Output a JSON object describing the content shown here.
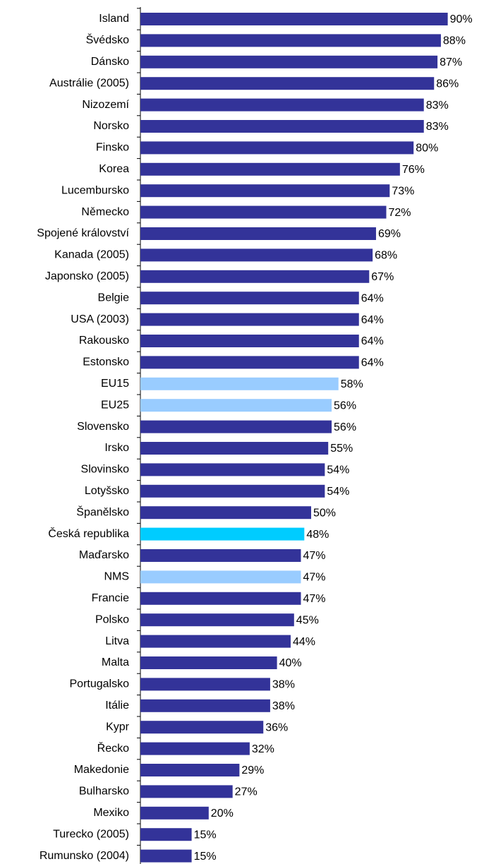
{
  "chart_data": {
    "type": "barh",
    "categories": [
      "Island",
      "Švédsko",
      "Dánsko",
      "Austrálie (2005)",
      "Nizozemí",
      "Norsko",
      "Finsko",
      "Korea",
      "Lucembursko",
      "Německo",
      "Spojené království",
      "Kanada (2005)",
      "Japonsko (2005)",
      "Belgie",
      "USA (2003)",
      "Rakousko",
      "Estonsko",
      "EU15",
      "EU25",
      "Slovensko",
      "Irsko",
      "Slovinsko",
      "Lotyšsko",
      "Španělsko",
      "Česká republika",
      "Maďarsko",
      "NMS",
      "Francie",
      "Polsko",
      "Litva",
      "Malta",
      "Portugalsko",
      "Itálie",
      "Kypr",
      "Řecko",
      "Makedonie",
      "Bulharsko",
      "Mexiko",
      "Turecko (2005)",
      "Rumunsko (2004)"
    ],
    "values": [
      90,
      88,
      87,
      86,
      83,
      83,
      80,
      76,
      73,
      72,
      69,
      68,
      67,
      64,
      64,
      64,
      64,
      58,
      56,
      56,
      55,
      54,
      54,
      50,
      48,
      47,
      47,
      47,
      45,
      44,
      40,
      38,
      38,
      36,
      32,
      29,
      27,
      20,
      15,
      15
    ],
    "value_labels": [
      "90%",
      "88%",
      "87%",
      "86%",
      "83%",
      "83%",
      "80%",
      "76%",
      "73%",
      "72%",
      "69%",
      "68%",
      "67%",
      "64%",
      "64%",
      "64%",
      "64%",
      "58%",
      "56%",
      "56%",
      "55%",
      "54%",
      "54%",
      "50%",
      "48%",
      "47%",
      "47%",
      "47%",
      "45%",
      "44%",
      "40%",
      "38%",
      "38%",
      "36%",
      "32%",
      "29%",
      "27%",
      "20%",
      "15%",
      "15%"
    ],
    "colors": [
      "#333399",
      "#333399",
      "#333399",
      "#333399",
      "#333399",
      "#333399",
      "#333399",
      "#333399",
      "#333399",
      "#333399",
      "#333399",
      "#333399",
      "#333399",
      "#333399",
      "#333399",
      "#333399",
      "#333399",
      "#99ccff",
      "#99ccff",
      "#333399",
      "#333399",
      "#333399",
      "#333399",
      "#333399",
      "#00ccff",
      "#333399",
      "#99ccff",
      "#333399",
      "#333399",
      "#333399",
      "#333399",
      "#333399",
      "#333399",
      "#333399",
      "#333399",
      "#333399",
      "#333399",
      "#333399",
      "#333399",
      "#333399"
    ],
    "xlim": [
      0,
      100
    ]
  }
}
